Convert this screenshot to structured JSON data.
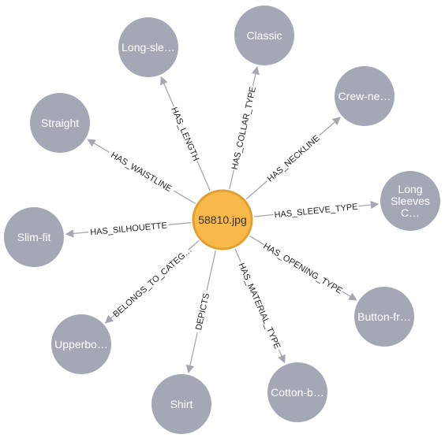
{
  "center": {
    "label": "58810.jpg",
    "color": "#f8b84a",
    "stroke": "#e0a030"
  },
  "node_color": "#a4a8b5",
  "edge_color": "#a5a8b2",
  "nodes": [
    {
      "label": "Long-sle…",
      "edge": "HAS_LENGTH"
    },
    {
      "label": "Classic",
      "edge": "HAS_COLLAR_TYPE"
    },
    {
      "label": "Crew-ne…",
      "edge": "HAS_NECKLINE"
    },
    {
      "label": "Long Sleeves C…",
      "lines": [
        "Long",
        "Sleeves",
        "C…"
      ],
      "edge": "HAS_SLEEVE_TYPE"
    },
    {
      "label": "Button-fr…",
      "edge": "HAS_OPENING_TYPE"
    },
    {
      "label": "Cotton-b…",
      "edge": "HAS_MATERIAL_TYPE"
    },
    {
      "label": "Shirt",
      "edge": "DEPICTS"
    },
    {
      "label": "Upperbo…",
      "edge": "BELONGS_TO_CATEG…"
    },
    {
      "label": "Slim-fit",
      "edge": "HAS_SILHOUETTE"
    },
    {
      "label": "Straight",
      "edge": "HAS_WAISTLINE"
    }
  ]
}
